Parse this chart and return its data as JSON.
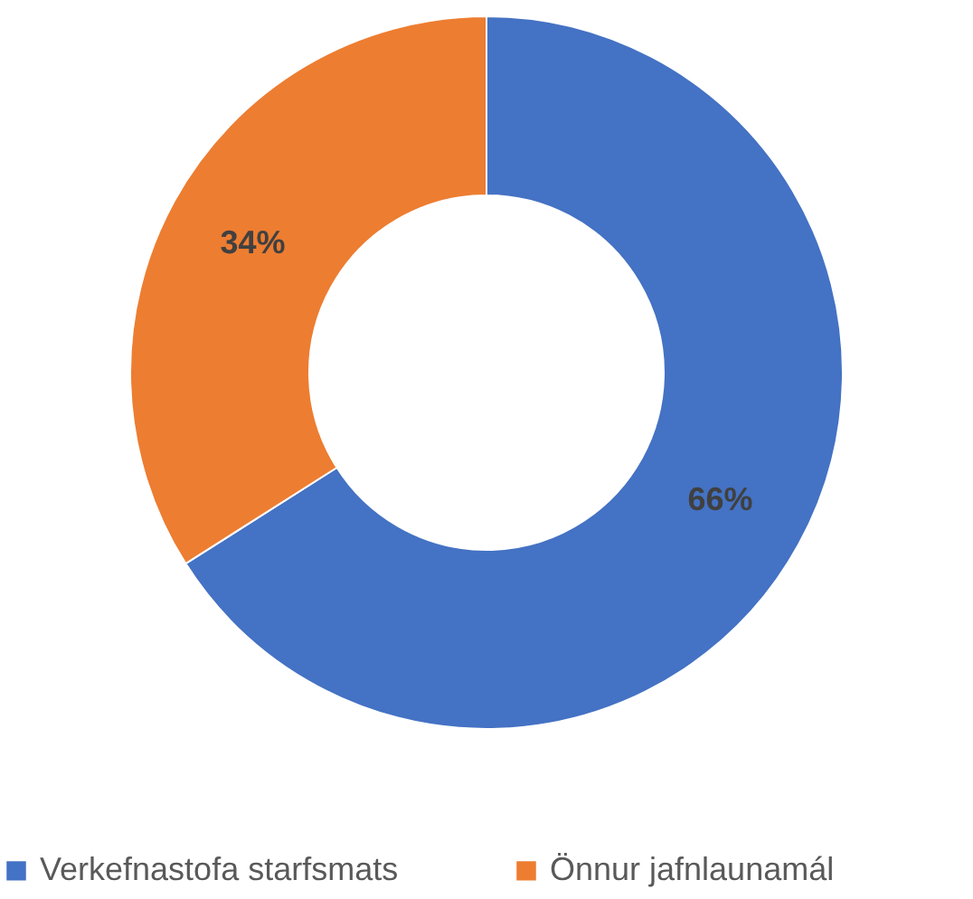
{
  "chart_data": {
    "type": "donut",
    "categories": [
      "Verkefnastofa starfsmats",
      "Önnur jafnlaunamál"
    ],
    "values": [
      66,
      34
    ],
    "colors": [
      "#4472c4",
      "#ed7d31"
    ],
    "value_labels": [
      "66%",
      "34%"
    ],
    "legend": "bottom"
  }
}
